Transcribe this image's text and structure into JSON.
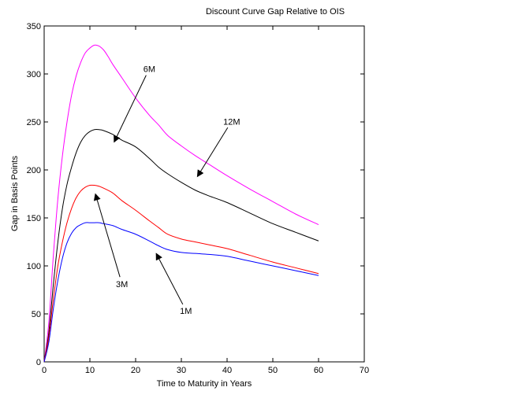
{
  "chart_data": {
    "type": "line",
    "title": "Discount Curve Gap Relative to OIS",
    "xlabel": "Time to Maturity in Years",
    "ylabel": "Gap in Basis Points",
    "xlim": [
      0,
      70
    ],
    "ylim": [
      0,
      350
    ],
    "x_ticks": [
      0,
      10,
      20,
      30,
      40,
      50,
      60,
      70
    ],
    "y_ticks": [
      0,
      50,
      100,
      150,
      200,
      250,
      300,
      350
    ],
    "grid": false,
    "series": [
      {
        "name": "12M",
        "color": "#ff00ff",
        "points": [
          [
            0,
            0
          ],
          [
            1,
            40
          ],
          [
            2,
            110
          ],
          [
            3,
            170
          ],
          [
            4,
            215
          ],
          [
            5,
            250
          ],
          [
            6,
            278
          ],
          [
            7,
            298
          ],
          [
            8,
            312
          ],
          [
            9,
            322
          ],
          [
            10,
            327
          ],
          [
            11,
            330
          ],
          [
            12,
            329
          ],
          [
            13,
            325
          ],
          [
            14,
            318
          ],
          [
            15,
            310
          ],
          [
            17,
            296
          ],
          [
            20,
            275
          ],
          [
            23,
            257
          ],
          [
            25,
            247
          ],
          [
            27,
            236
          ],
          [
            30,
            225
          ],
          [
            33,
            215
          ],
          [
            36,
            206
          ],
          [
            40,
            194
          ],
          [
            45,
            180
          ],
          [
            50,
            167
          ],
          [
            55,
            154
          ],
          [
            60,
            143
          ]
        ]
      },
      {
        "name": "6M",
        "color": "#000000",
        "points": [
          [
            0,
            0
          ],
          [
            1,
            30
          ],
          [
            2,
            80
          ],
          [
            3,
            125
          ],
          [
            4,
            160
          ],
          [
            5,
            185
          ],
          [
            6,
            203
          ],
          [
            7,
            218
          ],
          [
            8,
            229
          ],
          [
            9,
            236
          ],
          [
            10,
            240
          ],
          [
            11,
            242
          ],
          [
            12,
            242
          ],
          [
            13,
            241
          ],
          [
            15,
            237
          ],
          [
            17,
            231
          ],
          [
            20,
            224
          ],
          [
            23,
            212
          ],
          [
            25,
            203
          ],
          [
            27,
            196
          ],
          [
            30,
            187
          ],
          [
            33,
            179
          ],
          [
            36,
            173
          ],
          [
            40,
            166
          ],
          [
            45,
            155
          ],
          [
            50,
            144
          ],
          [
            55,
            135
          ],
          [
            60,
            126
          ]
        ]
      },
      {
        "name": "3M",
        "color": "#ff0000",
        "points": [
          [
            0,
            0
          ],
          [
            1,
            25
          ],
          [
            2,
            65
          ],
          [
            3,
            100
          ],
          [
            4,
            125
          ],
          [
            5,
            145
          ],
          [
            6,
            160
          ],
          [
            7,
            171
          ],
          [
            8,
            178
          ],
          [
            9,
            182
          ],
          [
            10,
            184
          ],
          [
            11,
            184
          ],
          [
            12,
            183
          ],
          [
            13,
            181
          ],
          [
            15,
            176
          ],
          [
            17,
            168
          ],
          [
            20,
            158
          ],
          [
            23,
            147
          ],
          [
            25,
            140
          ],
          [
            27,
            133
          ],
          [
            30,
            128
          ],
          [
            33,
            125
          ],
          [
            36,
            122
          ],
          [
            40,
            118
          ],
          [
            45,
            111
          ],
          [
            50,
            104
          ],
          [
            55,
            98
          ],
          [
            60,
            92
          ]
        ]
      },
      {
        "name": "1M",
        "color": "#0000ff",
        "points": [
          [
            0,
            0
          ],
          [
            1,
            20
          ],
          [
            2,
            55
          ],
          [
            3,
            85
          ],
          [
            4,
            108
          ],
          [
            5,
            124
          ],
          [
            6,
            134
          ],
          [
            7,
            140
          ],
          [
            8,
            143
          ],
          [
            9,
            145
          ],
          [
            10,
            145
          ],
          [
            11,
            145
          ],
          [
            12,
            145
          ],
          [
            13,
            144
          ],
          [
            15,
            142
          ],
          [
            17,
            138
          ],
          [
            20,
            133
          ],
          [
            23,
            126
          ],
          [
            25,
            121
          ],
          [
            27,
            117
          ],
          [
            30,
            114
          ],
          [
            33,
            113
          ],
          [
            36,
            112
          ],
          [
            40,
            110
          ],
          [
            45,
            105
          ],
          [
            50,
            100
          ],
          [
            55,
            95
          ],
          [
            60,
            90
          ]
        ]
      }
    ],
    "annotations": [
      {
        "text": "6M",
        "text_at": [
          23,
          302
        ],
        "arrow_to": [
          15.3,
          229
        ]
      },
      {
        "text": "12M",
        "text_at": [
          41,
          247
        ],
        "arrow_to": [
          33.5,
          193
        ]
      },
      {
        "text": "3M",
        "text_at": [
          17,
          78
        ],
        "arrow_to": [
          11.2,
          175
        ]
      },
      {
        "text": "1M",
        "text_at": [
          31,
          50
        ],
        "arrow_to": [
          24.5,
          113
        ]
      }
    ]
  }
}
